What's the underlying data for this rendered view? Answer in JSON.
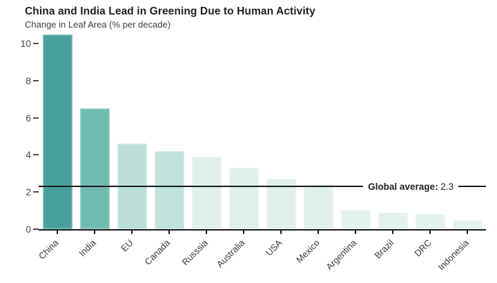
{
  "chart_data": {
    "type": "bar",
    "title": "China and India Lead in Greening Due to Human Activity",
    "subtitle": "Change in Leaf Area (% per decade)",
    "categories": [
      "China",
      "India",
      "EU",
      "Canada",
      "Russsia",
      "Australia",
      "USA",
      "Mexico",
      "Argentina",
      "Brazil",
      "DRC",
      "Indonesia"
    ],
    "values": [
      10.5,
      6.5,
      4.6,
      4.2,
      3.9,
      3.3,
      2.7,
      2.4,
      1.0,
      0.9,
      0.8,
      0.5
    ],
    "bar_colors": [
      "#47a19a",
      "#6fbab1",
      "#bae0d9",
      "#bfe2dc",
      "#dff0ed",
      "#dff0ed",
      "#dff0ed",
      "#dff0ed",
      "#e0f1ee",
      "#e0f1ee",
      "#e0f1ee",
      "#e0f1ee"
    ],
    "xlabel": "",
    "ylabel": "Change in Leaf Area (% per decade)",
    "ylim": [
      0,
      10.6
    ],
    "yticks": [
      0,
      2,
      4,
      6,
      8,
      10
    ],
    "grid": false,
    "legend": null,
    "reference_line": {
      "value": 2.3,
      "label": "Global average:",
      "value_text": "2.3"
    },
    "colors": {
      "axis": "#1a1a1a",
      "tick_label": "#4a4a4a",
      "category_label": "#383838",
      "title": "#1f1f1f",
      "subtitle": "#3d3d3d",
      "background": "#ffffff"
    }
  }
}
